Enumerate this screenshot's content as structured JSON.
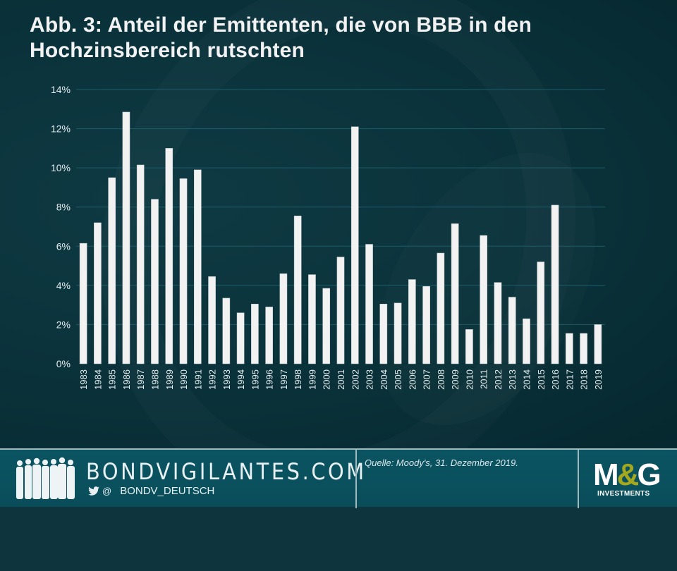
{
  "title": "Abb. 3: Anteil der Emittenten, die von BBB in den Hochzinsbereich rutschten",
  "colors": {
    "background": "#0b333c",
    "bar": "#f2f2f2",
    "gridline": "#1d5c69",
    "footer": "#0b5462",
    "logo_accent": "#a4a81f"
  },
  "chart_data": {
    "type": "bar",
    "title": "Abb. 3: Anteil der Emittenten, die von BBB in den Hochzinsbereich rutschten",
    "xlabel": "",
    "ylabel": "",
    "ylim": [
      0,
      14
    ],
    "yticks": [
      0,
      2,
      4,
      6,
      8,
      10,
      12,
      14
    ],
    "ytick_labels": [
      "0%",
      "2%",
      "4%",
      "6%",
      "8%",
      "10%",
      "12%",
      "14%"
    ],
    "grid": true,
    "legend": "none",
    "categories": [
      "1983",
      "1984",
      "1985",
      "1986",
      "1987",
      "1988",
      "1989",
      "1990",
      "1991",
      "1992",
      "1993",
      "1994",
      "1995",
      "1996",
      "1997",
      "1998",
      "1999",
      "2000",
      "2001",
      "2002",
      "2003",
      "2004",
      "2005",
      "2006",
      "2007",
      "2008",
      "2009",
      "2010",
      "2011",
      "2012",
      "2013",
      "2014",
      "2015",
      "2016",
      "2017",
      "2018",
      "2019"
    ],
    "values": [
      6.15,
      7.2,
      9.5,
      12.85,
      10.15,
      8.4,
      11.0,
      9.45,
      9.9,
      4.45,
      3.35,
      2.6,
      3.05,
      2.9,
      4.6,
      7.55,
      4.55,
      3.85,
      5.45,
      12.1,
      6.1,
      3.05,
      3.1,
      4.3,
      3.95,
      5.65,
      7.15,
      1.75,
      6.55,
      4.15,
      3.4,
      2.3,
      5.2,
      8.1,
      1.55,
      1.55,
      2.0
    ],
    "unit": "%"
  },
  "footer": {
    "site": "BONDVIGILANTES.COM",
    "twitter_at": "@",
    "twitter_handle": "BONDV_DEUTSCH",
    "source": "Quelle: Moody's,  31. Dezember 2019.",
    "logo_m": "M",
    "logo_amp": "&",
    "logo_g": "G",
    "logo_sub": "INVESTMENTS"
  },
  "icons": {
    "people": "people-silhouettes-icon",
    "twitter": "twitter-bird-icon"
  }
}
